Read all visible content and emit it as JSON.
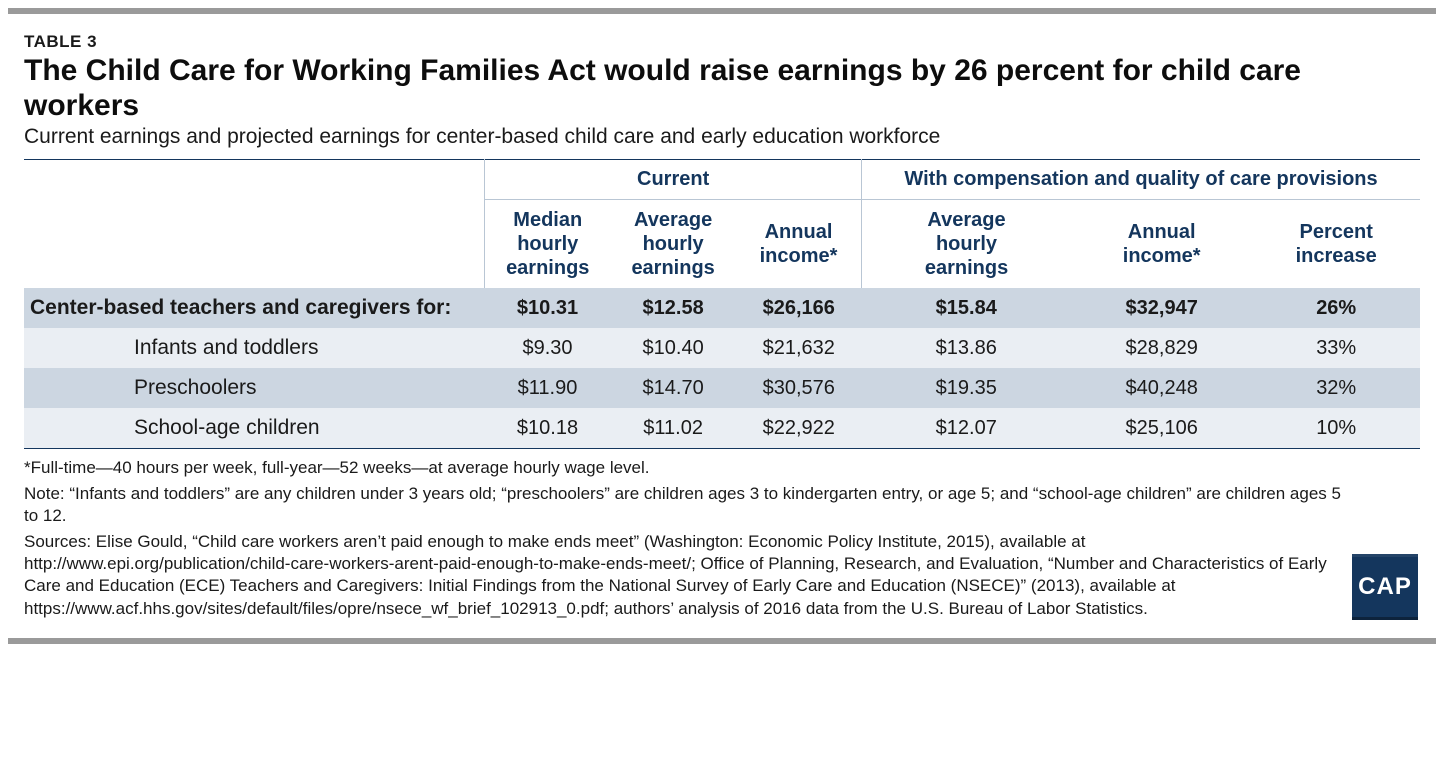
{
  "meta": {
    "table_label": "TABLE 3",
    "title": "The Child Care for Working Families Act would raise earnings by 26 percent for child care workers",
    "subtitle": "Current earnings and projected earnings for center-based child care and early education workforce"
  },
  "colors": {
    "rule": "#9a9a9a",
    "header_text": "#14365d",
    "cell_border": "#b9c6d4",
    "stripe_dark": "#ccd6e1",
    "stripe_light": "#eaeef3",
    "logo_bg": "#14365d",
    "logo_text": "CAP"
  },
  "headers": {
    "group_left": "Current",
    "group_right": "With compensation and quality of care provisions",
    "sub": {
      "c1": "Median hourly earnings",
      "c2": "Average hourly earnings",
      "c3": "Annual income*",
      "c4": "Average hourly earnings",
      "c5": "Annual income*",
      "c6": "Percent increase"
    }
  },
  "rows": [
    {
      "label": "Center-based teachers and caregivers for:",
      "bold": true,
      "stripe": "dark",
      "cells": [
        "$10.31",
        "$12.58",
        "$26,166",
        "$15.84",
        "$32,947",
        "26%"
      ]
    },
    {
      "label": "Infants and toddlers",
      "bold": false,
      "stripe": "light",
      "cells": [
        "$9.30",
        "$10.40",
        "$21,632",
        "$13.86",
        "$28,829",
        "33%"
      ]
    },
    {
      "label": "Preschoolers",
      "bold": false,
      "stripe": "dark",
      "cells": [
        "$11.90",
        "$14.70",
        "$30,576",
        "$19.35",
        "$40,248",
        "32%"
      ]
    },
    {
      "label": "School-age children",
      "bold": false,
      "stripe": "light",
      "cells": [
        "$10.18",
        "$11.02",
        "$22,922",
        "$12.07",
        "$25,106",
        "10%"
      ]
    }
  ],
  "footnotes": {
    "f1": "*Full-time—40 hours per week, full-year—52 weeks—at average hourly wage level.",
    "f2": "Note: “Infants and toddlers” are any children under 3 years old; “preschoolers” are children ages 3 to kindergarten entry, or age 5; and “school-age children” are children ages 5 to 12.",
    "f3": "Sources: Elise Gould, “Child care workers aren’t paid enough to make ends meet” (Washington: Economic Policy Institute, 2015), available at http://www.epi.org/publication/child-care-workers-arent-paid-enough-to-make-ends-meet/; Office of Planning, Research, and Evaluation, “Number and Characteristics of Early Care and Education (ECE) Teachers and Caregivers: Initial Findings from the National Survey of Early Care and Education (NSECE)” (2013), available at https://www.acf.hhs.gov/sites/default/files/opre/nsece_wf_brief_102913_0.pdf; authors’ analysis of 2016 data from the U.S. Bureau of Labor Statistics."
  }
}
